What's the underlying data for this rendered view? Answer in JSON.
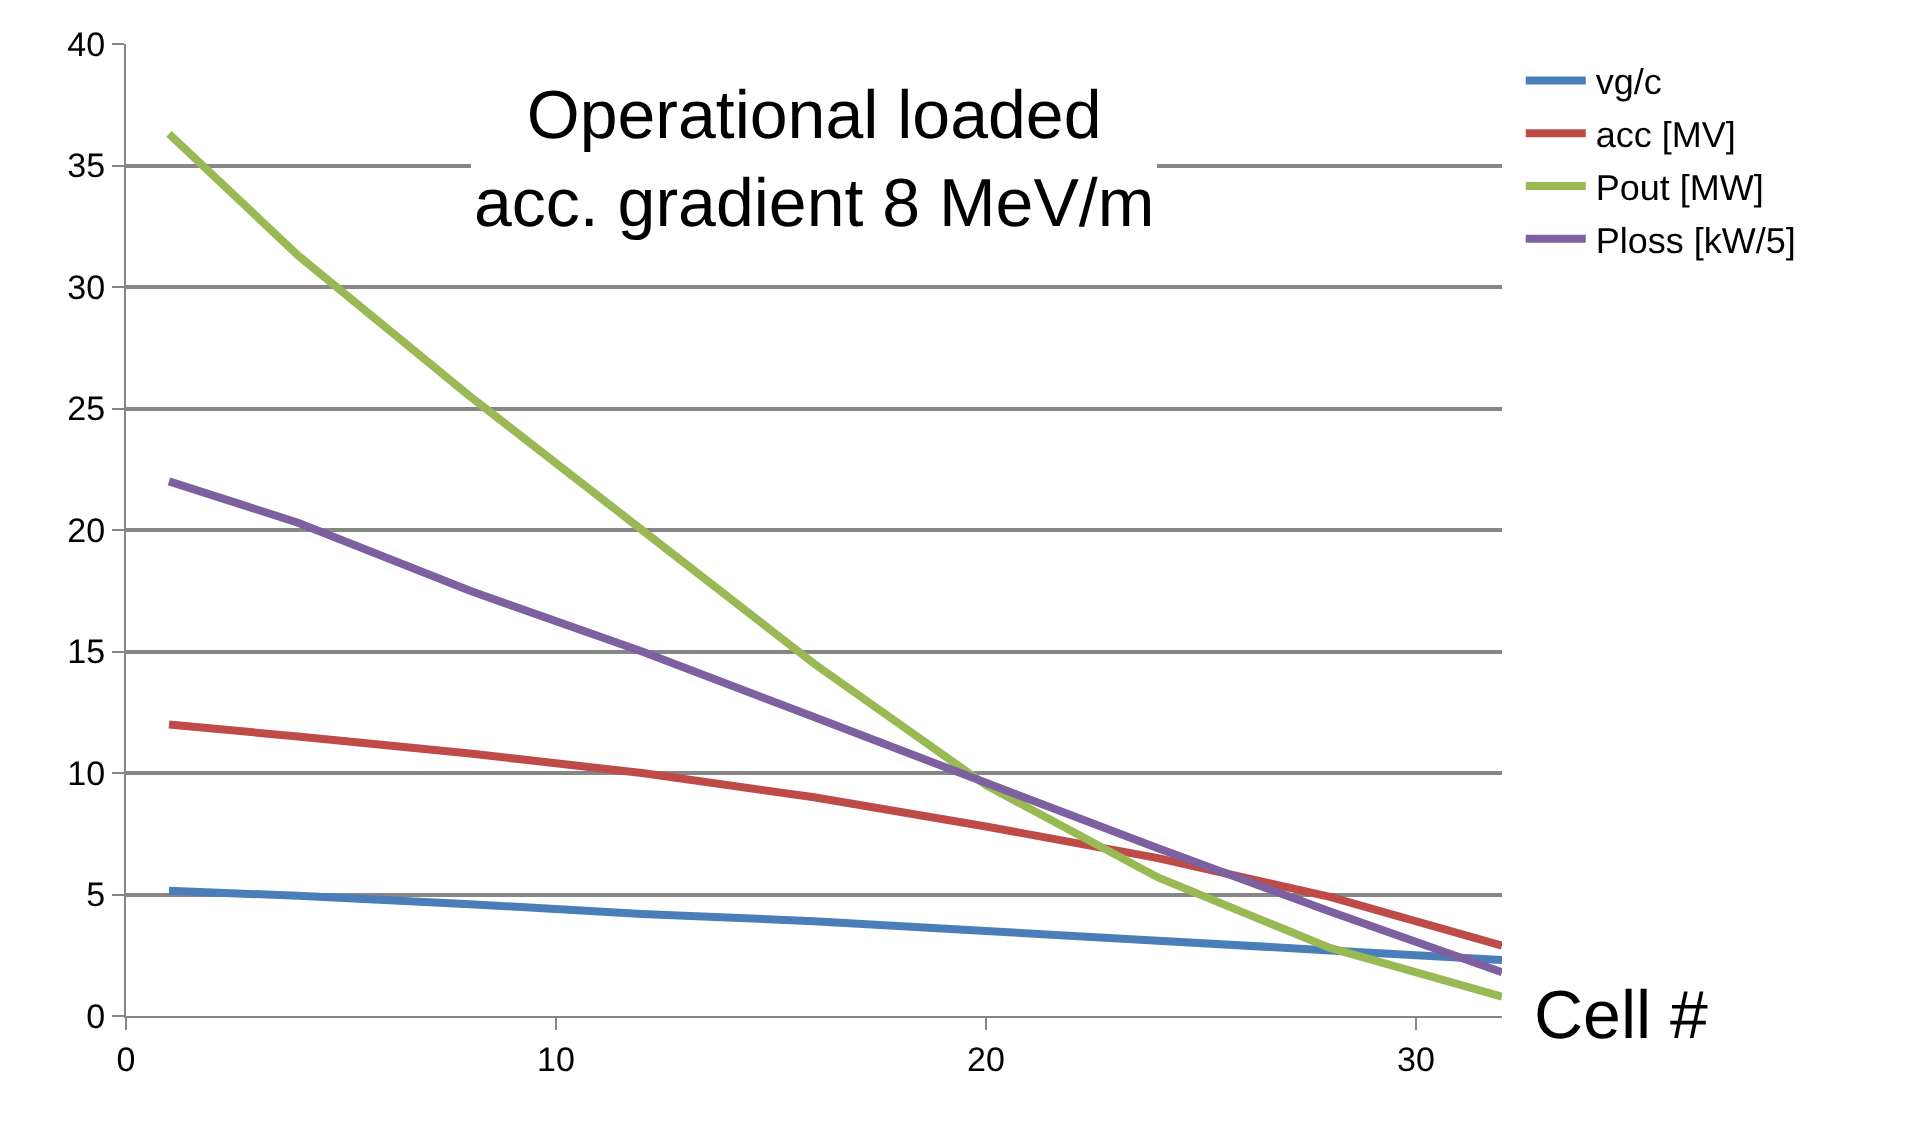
{
  "chart_data": {
    "type": "line",
    "title": "Operational loaded\nacc. gradient 8 MeV/m",
    "xlabel": "Cell #",
    "x": [
      1,
      4,
      8,
      12,
      16,
      20,
      24,
      28,
      32
    ],
    "series": [
      {
        "name": "vg/c",
        "color": "#4a7ebb",
        "values": [
          5.15,
          4.95,
          4.6,
          4.2,
          3.9,
          3.5,
          3.1,
          2.7,
          2.3
        ]
      },
      {
        "name": "acc [MV]",
        "color": "#be4b48",
        "values": [
          12,
          11.5,
          10.8,
          10.0,
          9.0,
          7.8,
          6.5,
          4.9,
          2.9
        ]
      },
      {
        "name": "Pout [MW]",
        "color": "#98b954",
        "values": [
          36.3,
          31.3,
          25.5,
          20,
          14.5,
          9.5,
          5.7,
          2.8,
          0.8
        ]
      },
      {
        "name": "Ploss [kW/5]",
        "color": "#7d60a0",
        "values": [
          22,
          20.3,
          17.5,
          15,
          12.3,
          9.6,
          6.9,
          4.3,
          1.8
        ]
      }
    ],
    "xlim": [
      0,
      32
    ],
    "xticks": [
      0,
      10,
      20,
      30
    ],
    "ylim": [
      0,
      40
    ],
    "yticks": [
      0,
      5,
      10,
      15,
      20,
      25,
      30,
      35,
      40
    ],
    "grid": "y",
    "legend": "top right",
    "marker": "none",
    "line_style": "solid"
  }
}
